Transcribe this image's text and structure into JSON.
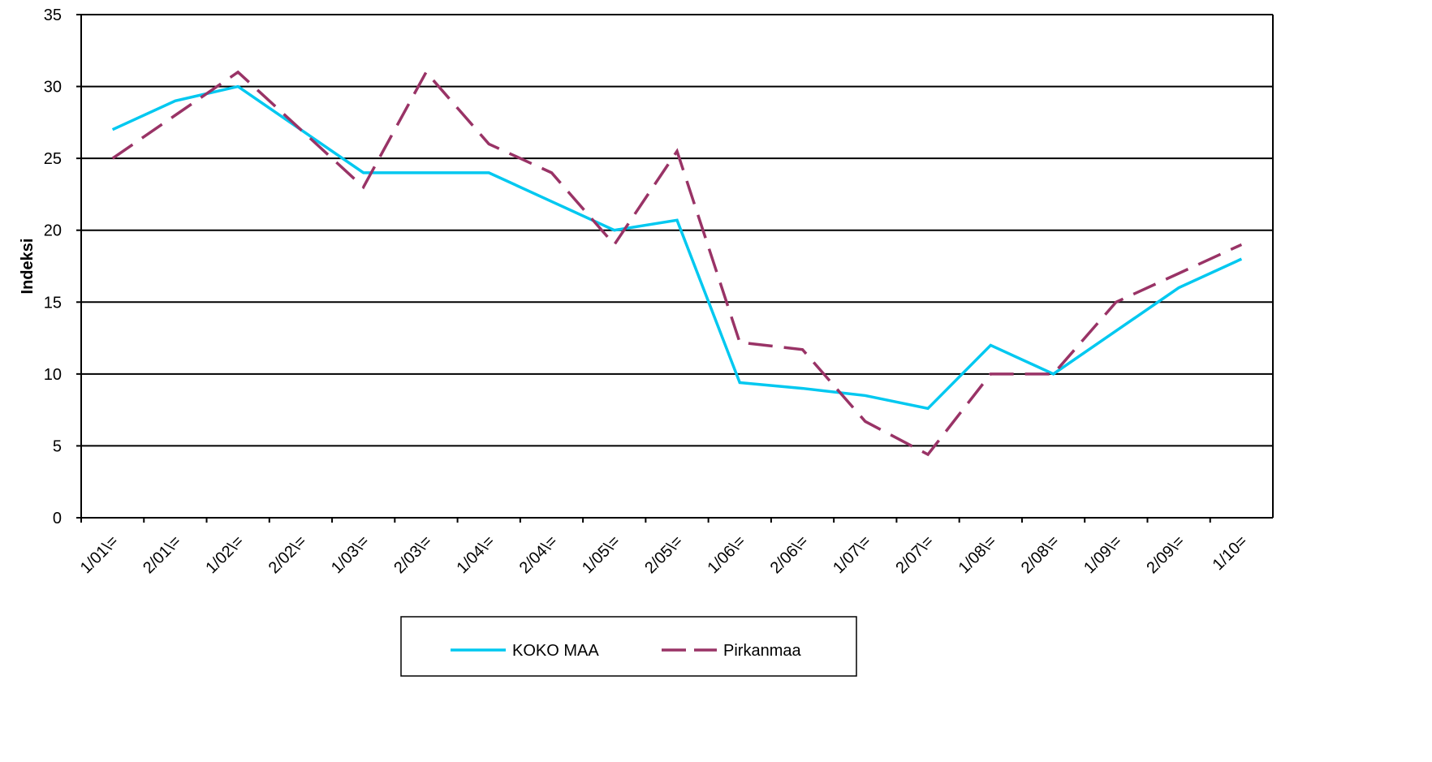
{
  "chart_data": {
    "type": "line",
    "y_label": "Indeksi",
    "categories": [
      "1/01\\=",
      "2/01\\=",
      "1/02\\=",
      "2/02\\=",
      "1/03\\=",
      "2/03\\=",
      "1/04\\=",
      "2/04\\=",
      "1/05\\=",
      "2/05\\=",
      "1/06\\=",
      "2/06\\=",
      "1/07\\=",
      "2/07\\=",
      "1/08\\=",
      "2/08\\=",
      "1/09\\=",
      "2/09\\=",
      "1/10="
    ],
    "series": [
      {
        "name": "KOKO MAA",
        "color": "#00c8f0",
        "dash": false,
        "values": [
          27,
          29,
          30,
          27,
          24,
          24,
          24,
          22,
          20,
          20.7,
          9.4,
          9,
          8.5,
          7.6,
          12,
          10,
          13,
          16,
          18
        ]
      },
      {
        "name": "Pirkanmaa",
        "color": "#993366",
        "dash": true,
        "values": [
          25,
          28,
          31,
          27,
          23,
          31,
          26,
          24,
          19,
          25.5,
          12.2,
          11.7,
          6.7,
          4.4,
          10,
          10,
          15,
          17,
          19
        ]
      }
    ],
    "ylim": [
      0,
      35
    ],
    "yticks": [
      0,
      5,
      10,
      15,
      20,
      25,
      30,
      35
    ],
    "grid": true,
    "legend": "bottom"
  }
}
